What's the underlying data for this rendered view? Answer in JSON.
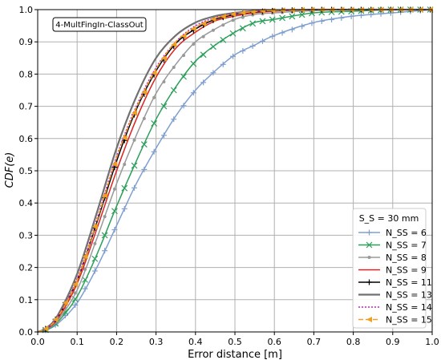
{
  "chart_data": {
    "type": "line",
    "annotation": "4-MultFingIn-ClassOut",
    "xlabel": "Error distance [m]",
    "ylabel": "CDF(e)",
    "xlim": [
      0.0,
      1.0
    ],
    "ylim": [
      0.0,
      1.0
    ],
    "xticks": [
      "0.0",
      "0.1",
      "0.2",
      "0.3",
      "0.4",
      "0.5",
      "0.6",
      "0.7",
      "0.8",
      "0.9",
      "1.0"
    ],
    "yticks": [
      "0.0",
      "0.1",
      "0.2",
      "0.3",
      "0.4",
      "0.5",
      "0.6",
      "0.7",
      "0.8",
      "0.9",
      "1.0"
    ],
    "grid": true,
    "legend_position": "lower-right",
    "legend_title": "S_S = 30 mm",
    "x": [
      0.0,
      0.02,
      0.05,
      0.1,
      0.15,
      0.2,
      0.25,
      0.3,
      0.35,
      0.4,
      0.45,
      0.5,
      0.55,
      0.6,
      0.7,
      0.8,
      0.9,
      1.0
    ],
    "series": [
      {
        "name": "N_SS = 6",
        "color": "#7f9fd0",
        "marker": "plus",
        "dash": "solid",
        "values": [
          0.0,
          0.005,
          0.025,
          0.09,
          0.2,
          0.33,
          0.46,
          0.57,
          0.67,
          0.75,
          0.81,
          0.86,
          0.89,
          0.92,
          0.96,
          0.98,
          0.99,
          1.0
        ]
      },
      {
        "name": "N_SS = 7",
        "color": "#2ca05a",
        "marker": "x",
        "dash": "solid",
        "values": [
          0.0,
          0.006,
          0.03,
          0.11,
          0.24,
          0.39,
          0.53,
          0.66,
          0.76,
          0.84,
          0.89,
          0.93,
          0.96,
          0.97,
          0.99,
          0.995,
          1.0,
          1.0
        ]
      },
      {
        "name": "N_SS = 8",
        "color": "#999999",
        "marker": "dot",
        "dash": "solid",
        "values": [
          0.0,
          0.008,
          0.035,
          0.13,
          0.29,
          0.46,
          0.61,
          0.74,
          0.83,
          0.9,
          0.94,
          0.97,
          0.985,
          0.99,
          0.997,
          1.0,
          1.0,
          1.0
        ]
      },
      {
        "name": "N_SS = 9",
        "color": "#dd2222",
        "marker": "none",
        "dash": "solid",
        "values": [
          0.0,
          0.009,
          0.04,
          0.15,
          0.32,
          0.5,
          0.66,
          0.79,
          0.88,
          0.93,
          0.965,
          0.98,
          0.99,
          0.995,
          1.0,
          1.0,
          1.0,
          1.0
        ]
      },
      {
        "name": "N_SS = 11",
        "color": "#000000",
        "marker": "plus",
        "dash": "solid",
        "values": [
          0.0,
          0.01,
          0.045,
          0.16,
          0.34,
          0.53,
          0.69,
          0.81,
          0.895,
          0.94,
          0.97,
          0.985,
          0.993,
          0.997,
          1.0,
          1.0,
          1.0,
          1.0
        ]
      },
      {
        "name": "N_SS = 13",
        "color": "#707070",
        "marker": "none",
        "dash": "solid",
        "values": [
          0.0,
          0.011,
          0.05,
          0.18,
          0.37,
          0.57,
          0.73,
          0.85,
          0.92,
          0.96,
          0.98,
          0.99,
          0.996,
          0.998,
          1.0,
          1.0,
          1.0,
          1.0
        ]
      },
      {
        "name": "N_SS = 14",
        "color": "#c020c0",
        "marker": "none",
        "dash": "dotted",
        "values": [
          0.0,
          0.01,
          0.046,
          0.165,
          0.35,
          0.545,
          0.7,
          0.82,
          0.9,
          0.95,
          0.975,
          0.988,
          0.995,
          0.998,
          1.0,
          1.0,
          1.0,
          1.0
        ]
      },
      {
        "name": "N_SS = 15",
        "color": "#f0a020",
        "marker": "larrow",
        "dash": "dashed",
        "values": [
          0.0,
          0.01,
          0.044,
          0.16,
          0.345,
          0.54,
          0.695,
          0.815,
          0.9,
          0.945,
          0.973,
          0.987,
          0.994,
          0.998,
          1.0,
          1.0,
          1.0,
          1.0
        ]
      }
    ]
  }
}
